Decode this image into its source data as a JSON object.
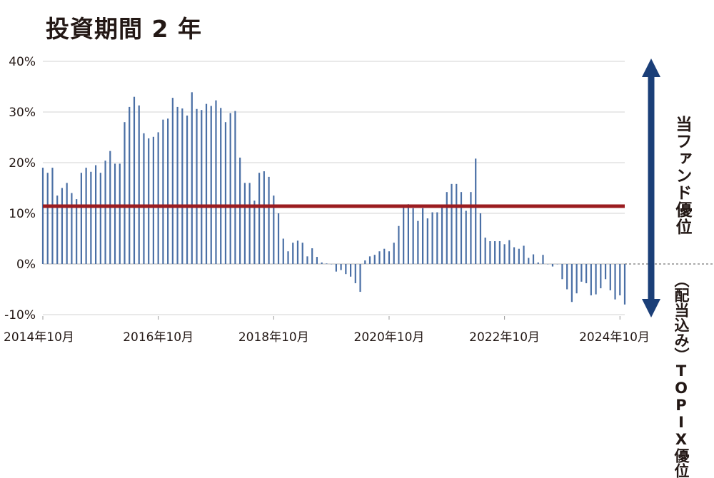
{
  "chart_data": {
    "type": "bar",
    "title": "投資期間 2 年",
    "ylim": [
      -10,
      40
    ],
    "y_ticks": [
      "40%",
      "30%",
      "20%",
      "10%",
      "0%",
      "-10%"
    ],
    "y_tick_values": [
      40,
      30,
      20,
      10,
      0,
      -10
    ],
    "x_tick_labels": [
      "2014年10月",
      "2016年10月",
      "2018年10月",
      "2020年10月",
      "2022年10月",
      "2024年10月"
    ],
    "x_tick_indices": [
      0,
      24,
      48,
      72,
      96,
      120
    ],
    "grid": true,
    "reference_line": {
      "value": 11.4,
      "color": "#9b1c20"
    },
    "bar_color": "#4a6fa5",
    "values": [
      19.0,
      18.0,
      19.0,
      13.5,
      15.0,
      16.0,
      14.0,
      12.8,
      18.0,
      19.0,
      18.2,
      19.5,
      18.0,
      20.4,
      22.3,
      19.8,
      19.8,
      28.0,
      31.0,
      33.0,
      31.3,
      25.8,
      24.8,
      25.1,
      26.0,
      28.5,
      28.7,
      32.8,
      31.0,
      30.7,
      29.3,
      33.9,
      30.6,
      30.4,
      31.6,
      31.2,
      32.3,
      30.8,
      28.0,
      29.8,
      30.2,
      21.0,
      16.0,
      16.0,
      12.5,
      18.0,
      18.3,
      17.2,
      13.5,
      10.0,
      5.0,
      2.5,
      4.2,
      4.6,
      4.2,
      1.5,
      3.1,
      1.4,
      0.3,
      0.1,
      0,
      -1.5,
      -1.2,
      -2.0,
      -2.5,
      -3.8,
      -5.5,
      0.7,
      1.5,
      1.8,
      2.5,
      3.0,
      2.5,
      4.2,
      7.5,
      11.2,
      11.8,
      11.0,
      8.5,
      11.0,
      9.0,
      10.2,
      10.2,
      11.5,
      14.2,
      15.8,
      15.8,
      14.2,
      10.5,
      14.2,
      20.8,
      10.0,
      5.2,
      4.5,
      4.5,
      4.5,
      3.9,
      4.7,
      3.3,
      3.0,
      3.6,
      1.2,
      1.9,
      0.3,
      1.8,
      0,
      -0.5,
      0,
      -3.0,
      -5.0,
      -7.5,
      -5.8,
      -3.5,
      -3.8,
      -6.2,
      -6.0,
      -4.8,
      -3.0,
      -5.2,
      -7.0,
      -6.2,
      -8.0
    ]
  },
  "side_labels": {
    "fund_advantage": "当ファンド優位",
    "topix_advantage": "（配当込み）TOPIX優位"
  },
  "arrow_color": "#1b3f78"
}
